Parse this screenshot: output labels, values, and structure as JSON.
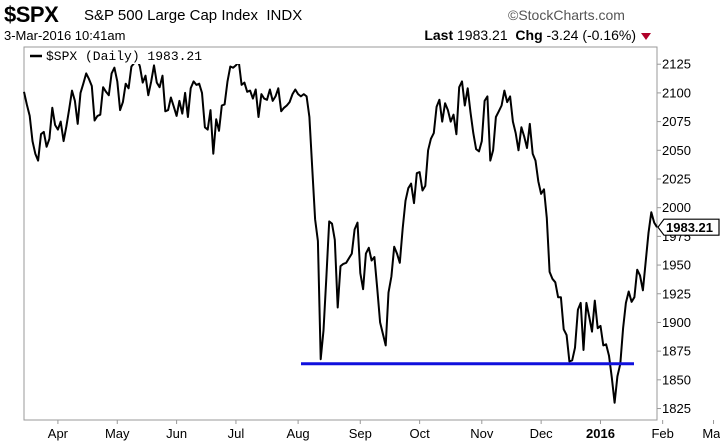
{
  "header": {
    "ticker": "$SPX",
    "name": "S&P 500 Large Cap Index",
    "exchange": "INDX",
    "source": "©StockCharts.com",
    "date": "3-Mar-2016 10:41am",
    "last_label": "Last",
    "last_value": "1983.21",
    "chg_label": "Chg",
    "chg_value": "-3.24 (-0.16%)",
    "down_color": "#b0002a"
  },
  "chart_data": {
    "type": "line",
    "legend": "$SPX (Daily) 1983.21",
    "legend_position": "top-left",
    "last_price_label": "1983.21",
    "ylim": [
      1815,
      2140
    ],
    "y_ticks": [
      1825,
      1850,
      1875,
      1900,
      1925,
      1950,
      1975,
      2000,
      2025,
      2050,
      2075,
      2100,
      2125
    ],
    "x_labels": [
      "Apr",
      "May",
      "Jun",
      "Jul",
      "Aug",
      "Sep",
      "Oct",
      "Nov",
      "Dec",
      "2016",
      "Feb",
      "Mar"
    ],
    "support_line": {
      "value": 1864,
      "color": "#1010dd"
    },
    "series_color": "#000000",
    "series": [
      {
        "values": [
          2101,
          2090,
          2080,
          2058,
          2047,
          2041,
          2064,
          2066,
          2053,
          2060,
          2087,
          2072,
          2068,
          2075,
          2058,
          2071,
          2086,
          2102,
          2093,
          2073,
          2100,
          2108,
          2117,
          2112,
          2106,
          2076,
          2080,
          2081,
          2105,
          2101,
          2098,
          2117,
          2122,
          2110,
          2085,
          2092,
          2108,
          2104,
          2123,
          2126,
          2130,
          2123,
          2109,
          2115,
          2098,
          2110,
          2124,
          2109,
          2105,
          2115,
          2084,
          2085,
          2096,
          2088,
          2080,
          2093,
          2082,
          2100,
          2079,
          2104,
          2110,
          2107,
          2108,
          2100,
          2070,
          2068,
          2085,
          2047,
          2077,
          2067,
          2089,
          2090,
          2110,
          2123,
          2122,
          2124,
          2127,
          2107,
          2109,
          2101,
          2102,
          2095,
          2103,
          2079,
          2099,
          2095,
          2094,
          2103,
          2093,
          2097,
          2104,
          2084,
          2087,
          2089,
          2092,
          2099,
          2103,
          2099,
          2097,
          2099,
          2097,
          2079,
          2035,
          1990,
          1971,
          1868,
          1893,
          1940,
          1988,
          1986,
          1972,
          1913,
          1949,
          1951,
          1952,
          1956,
          1960,
          1981,
          1987,
          1943,
          1929,
          1960,
          1965,
          1954,
          1957,
          1930,
          1900,
          1890,
          1880,
          1926,
          1940,
          1966,
          1960,
          1952,
          1982,
          2006,
          2017,
          2021,
          2004,
          2030,
          2031,
          2015,
          2019,
          2050,
          2060,
          2065,
          2088,
          2094,
          2075,
          2091,
          2085,
          2075,
          2081,
          2064,
          2105,
          2110,
          2089,
          2104,
          2083,
          2065,
          2051,
          2049,
          2058,
          2093,
          2097,
          2041,
          2050,
          2079,
          2084,
          2089,
          2102,
          2092,
          2097,
          2075,
          2065,
          2050,
          2070,
          2062,
          2052,
          2073,
          2047,
          2041,
          2023,
          2012,
          2016,
          1991,
          1944,
          1938,
          1935,
          1922,
          1922,
          1894,
          1889,
          1866,
          1867,
          1878,
          1911,
          1917,
          1876,
          1917,
          1905,
          1892,
          1919,
          1895,
          1897,
          1880,
          1881,
          1871,
          1852,
          1830,
          1853,
          1864,
          1895,
          1917,
          1927,
          1918,
          1922,
          1946,
          1941,
          1928,
          1953,
          1978,
          1996,
          1987,
          1983
        ]
      }
    ]
  }
}
